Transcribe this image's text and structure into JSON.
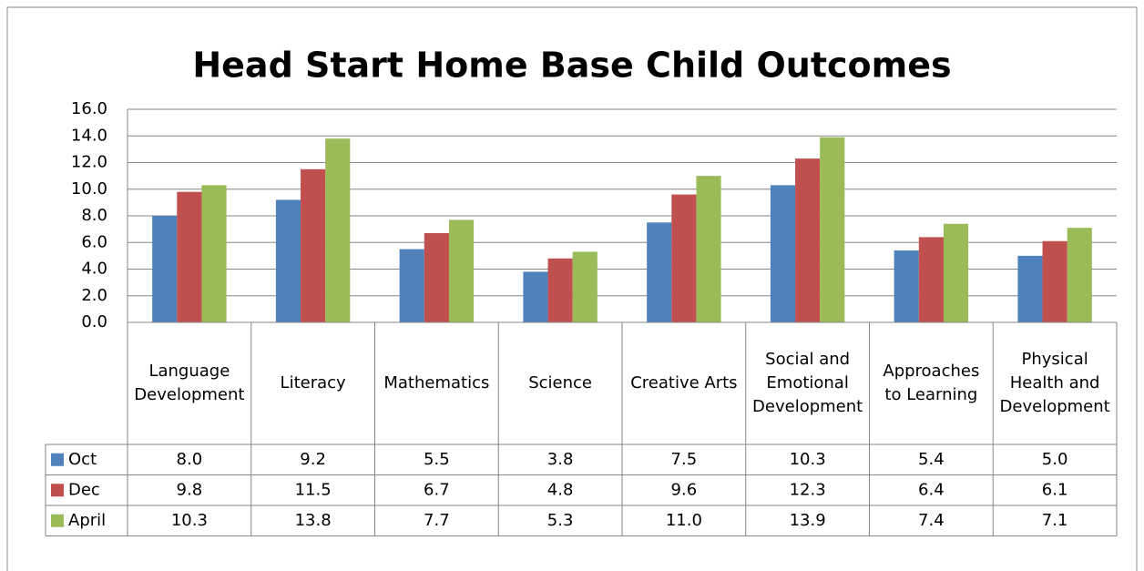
{
  "chart_data": {
    "type": "bar",
    "title": "Head Start Home Base Child Outcomes",
    "categories": [
      "Language Development",
      "Literacy",
      "Mathematics",
      "Science",
      "Creative Arts",
      "Social and Emotional Development",
      "Approaches to Learning",
      "Physical Health and Development"
    ],
    "series": [
      {
        "name": "Oct",
        "color": "#4f81bd",
        "values": [
          8.0,
          9.2,
          5.5,
          3.8,
          7.5,
          10.3,
          5.4,
          5.0
        ],
        "value_labels": [
          "8.0",
          "9.2",
          "5.5",
          "3.8",
          "7.5",
          "10.3",
          "5.4",
          "5.0"
        ]
      },
      {
        "name": "Dec",
        "color": "#c0504d",
        "values": [
          9.8,
          11.5,
          6.7,
          4.8,
          9.6,
          12.3,
          6.4,
          6.1
        ],
        "value_labels": [
          "9.8",
          "11.5",
          "6.7",
          "4.8",
          "9.6",
          "12.3",
          "6.4",
          "6.1"
        ]
      },
      {
        "name": "April",
        "color": "#9bbb59",
        "values": [
          10.3,
          13.8,
          7.7,
          5.3,
          11.0,
          13.9,
          7.4,
          7.1
        ],
        "value_labels": [
          "10.3",
          "13.8",
          "7.7",
          "5.3",
          "11.0",
          "13.9",
          "7.4",
          "7.1"
        ]
      }
    ],
    "ylim": [
      0,
      16
    ],
    "yticks": [
      {
        "value": 0,
        "label": "0.0"
      },
      {
        "value": 2,
        "label": "2.0"
      },
      {
        "value": 4,
        "label": "4.0"
      },
      {
        "value": 6,
        "label": "6.0"
      },
      {
        "value": 8,
        "label": "8.0"
      },
      {
        "value": 10,
        "label": "10.0"
      },
      {
        "value": 12,
        "label": "12.0"
      },
      {
        "value": 14,
        "label": "14.0"
      },
      {
        "value": 16,
        "label": "16.0"
      }
    ],
    "grid": true
  }
}
